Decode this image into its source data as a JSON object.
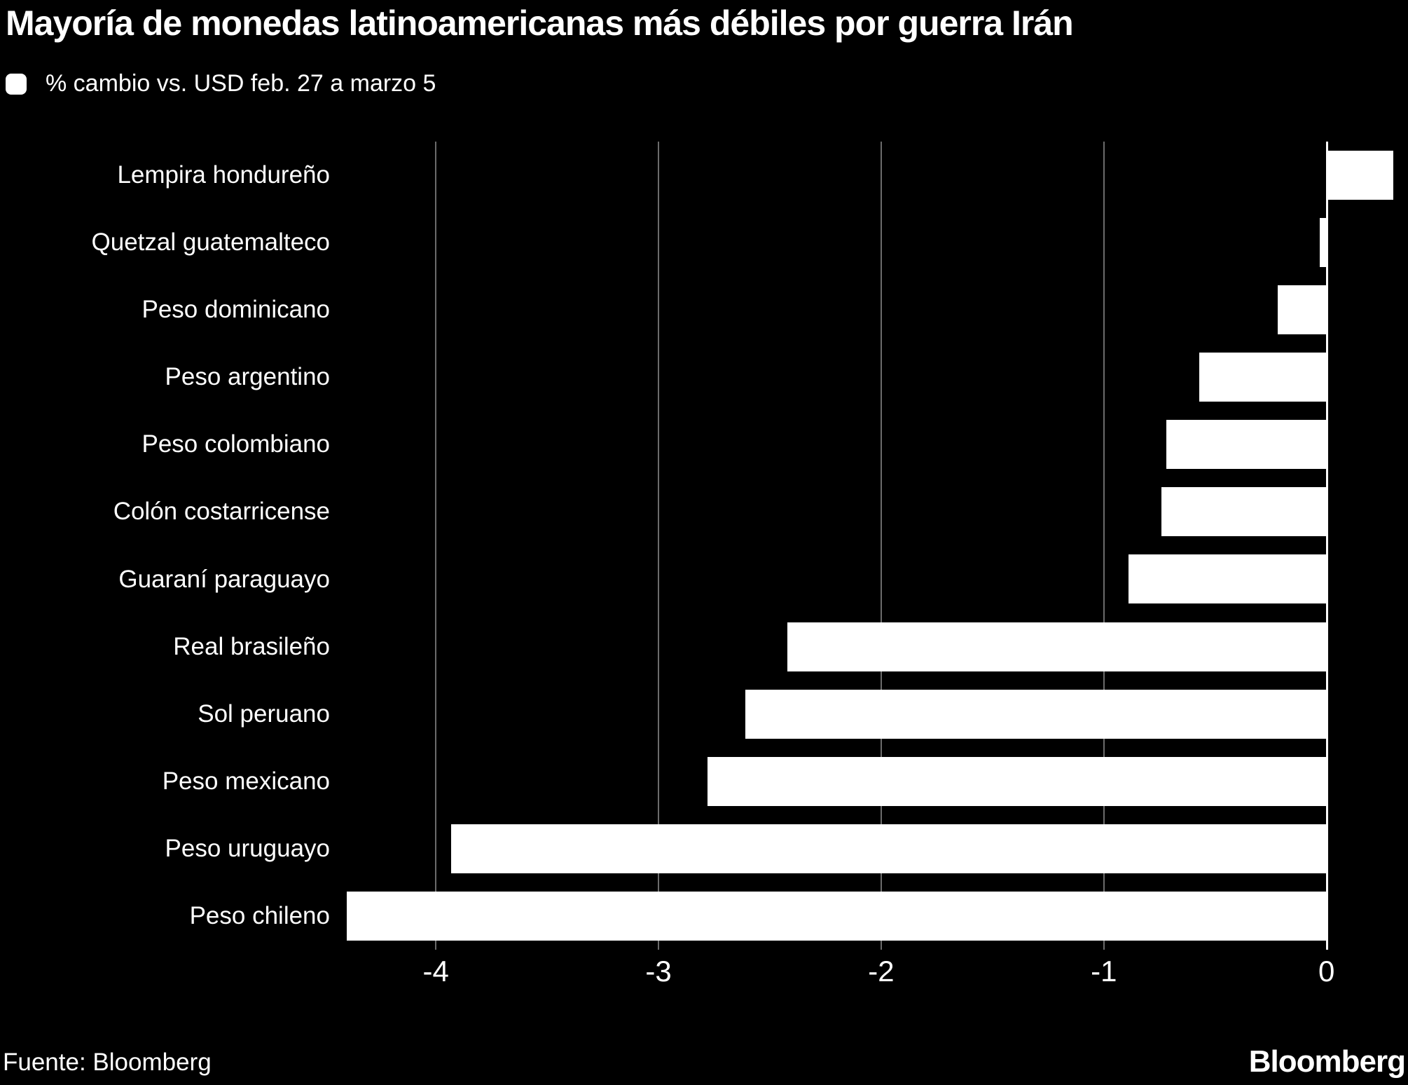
{
  "header": {
    "title": "Mayoría de monedas latinoamericanas más débiles por guerra Irán",
    "legend_label": "% cambio vs. USD feb. 27 a marzo 5"
  },
  "footer": {
    "source": "Fuente: Bloomberg",
    "brand": "Bloomberg"
  },
  "colors": {
    "background": "#000000",
    "bar": "#ffffff",
    "gridline": "#6b6b6b",
    "zero_line": "#ffffff",
    "text": "#ffffff"
  },
  "chart_data": {
    "type": "bar",
    "orientation": "horizontal",
    "title": "Mayoría de monedas latinoamericanas más débiles por guerra Irán",
    "legend": [
      "% cambio vs. USD feb. 27 a marzo 5"
    ],
    "legend_position": "top-left",
    "categories": [
      "Lempira hondureño",
      "Quetzal guatemalteco",
      "Peso dominicano",
      "Peso argentino",
      "Peso colombiano",
      "Colón costarricense",
      "Guaraní paraguayo",
      "Real brasileño",
      "Sol peruano",
      "Peso mexicano",
      "Peso uruguayo",
      "Peso chileno"
    ],
    "values": [
      0.3,
      -0.03,
      -0.22,
      -0.57,
      -0.72,
      -0.74,
      -0.89,
      -2.42,
      -2.61,
      -2.78,
      -3.93,
      -4.4
    ],
    "xlabel": "",
    "ylabel": "",
    "xlim": [
      -4.4,
      0.3
    ],
    "xticks": [
      -4,
      -3,
      -2,
      -1,
      0
    ],
    "grid": "vertical"
  }
}
